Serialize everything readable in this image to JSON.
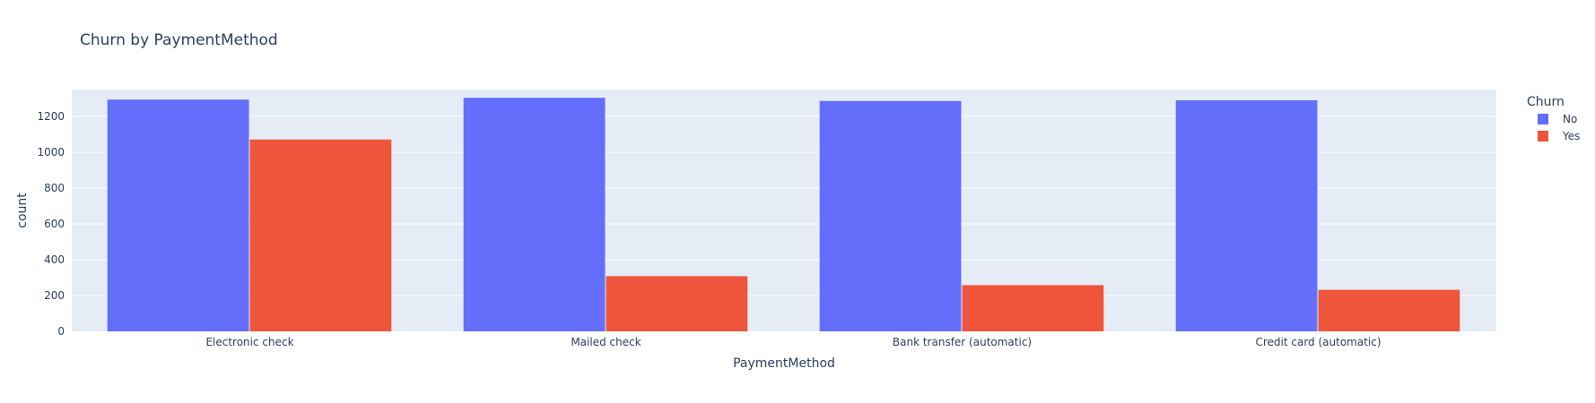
{
  "chart_data": {
    "type": "bar",
    "title": "Churn by PaymentMethod",
    "xlabel": "PaymentMethod",
    "ylabel": "count",
    "categories": [
      "Electronic check",
      "Mailed check",
      "Bank transfer (automatic)",
      "Credit card (automatic)"
    ],
    "series": [
      {
        "name": "No",
        "values": [
          1294,
          1304,
          1286,
          1290
        ],
        "color": "#636efa"
      },
      {
        "name": "Yes",
        "values": [
          1071,
          308,
          258,
          232
        ],
        "color": "#ef553b"
      }
    ],
    "ylim": [
      0,
      1350
    ],
    "yticks": [
      0,
      200,
      400,
      600,
      800,
      1000,
      1200
    ],
    "legend": {
      "title": "Churn",
      "position": "right"
    },
    "grid": true,
    "colors": {
      "plot_bg": "#e5ecf6",
      "grid": "#ffffff",
      "text": "#2a3f5f"
    }
  }
}
